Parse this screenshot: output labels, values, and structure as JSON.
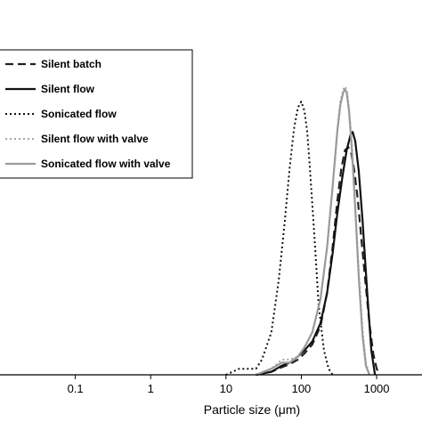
{
  "chart_data": {
    "type": "line",
    "title": "",
    "xlabel": "Particle size (μm)",
    "ylabel": "",
    "xscale": "log",
    "xlim": [
      0.01,
      4000
    ],
    "ylim": [
      0,
      1
    ],
    "x_ticks": [
      0.1,
      1,
      10,
      100,
      1000
    ],
    "x_tick_labels": [
      "0.1",
      "1",
      "10",
      "100",
      "1000"
    ],
    "grid": false,
    "legend_position": "top-left",
    "series": [
      {
        "name": "Silent batch",
        "style": "dashed",
        "color": "#222222",
        "x": [
          25,
          40,
          55,
          70,
          90,
          110,
          140,
          180,
          220,
          260,
          300,
          340,
          380,
          420,
          460,
          500,
          560,
          620,
          700,
          800,
          900,
          1000,
          1100
        ],
        "y": [
          0.0,
          0.01,
          0.025,
          0.035,
          0.05,
          0.07,
          0.1,
          0.16,
          0.27,
          0.42,
          0.57,
          0.68,
          0.74,
          0.75,
          0.73,
          0.68,
          0.58,
          0.46,
          0.32,
          0.17,
          0.07,
          0.02,
          0.0
        ]
      },
      {
        "name": "Silent flow",
        "style": "solid",
        "color": "#111111",
        "x": [
          25,
          40,
          55,
          70,
          90,
          110,
          140,
          180,
          220,
          260,
          300,
          350,
          400,
          450,
          480,
          520,
          580,
          650,
          750,
          850,
          950
        ],
        "y": [
          0.0,
          0.01,
          0.03,
          0.04,
          0.06,
          0.08,
          0.11,
          0.17,
          0.27,
          0.4,
          0.53,
          0.65,
          0.74,
          0.79,
          0.8,
          0.77,
          0.67,
          0.51,
          0.27,
          0.08,
          0.0
        ]
      },
      {
        "name": "Sonicated flow",
        "style": "dotted",
        "color": "#111111",
        "x": [
          10,
          15,
          20,
          25,
          30,
          40,
          50,
          60,
          70,
          80,
          90,
          100,
          110,
          120,
          130,
          150,
          170,
          200,
          230,
          260
        ],
        "y": [
          0.0,
          0.02,
          0.02,
          0.02,
          0.05,
          0.14,
          0.31,
          0.5,
          0.68,
          0.81,
          0.88,
          0.9,
          0.87,
          0.8,
          0.68,
          0.45,
          0.23,
          0.08,
          0.02,
          0.0
        ]
      },
      {
        "name": "Silent flow with valve",
        "style": "dotted",
        "color": "#a6a6a6",
        "x": [
          25,
          40,
          55,
          70,
          90,
          110,
          140,
          180,
          220,
          260,
          300,
          330,
          360,
          380,
          400,
          430,
          470,
          520,
          580,
          650,
          720,
          800
        ],
        "y": [
          0.0,
          0.02,
          0.05,
          0.05,
          0.06,
          0.09,
          0.14,
          0.25,
          0.42,
          0.62,
          0.8,
          0.9,
          0.94,
          0.95,
          0.94,
          0.88,
          0.76,
          0.56,
          0.34,
          0.15,
          0.04,
          0.0
        ]
      },
      {
        "name": "Sonicated flow with valve",
        "style": "solid",
        "color": "#9a9a9a",
        "x": [
          25,
          40,
          55,
          70,
          90,
          110,
          140,
          180,
          220,
          260,
          300,
          330,
          360,
          380,
          400,
          430,
          470,
          520,
          580,
          650,
          720,
          800
        ],
        "y": [
          0.0,
          0.02,
          0.04,
          0.04,
          0.06,
          0.09,
          0.14,
          0.25,
          0.42,
          0.62,
          0.8,
          0.89,
          0.93,
          0.94,
          0.93,
          0.87,
          0.74,
          0.55,
          0.32,
          0.13,
          0.03,
          0.0
        ]
      }
    ]
  }
}
